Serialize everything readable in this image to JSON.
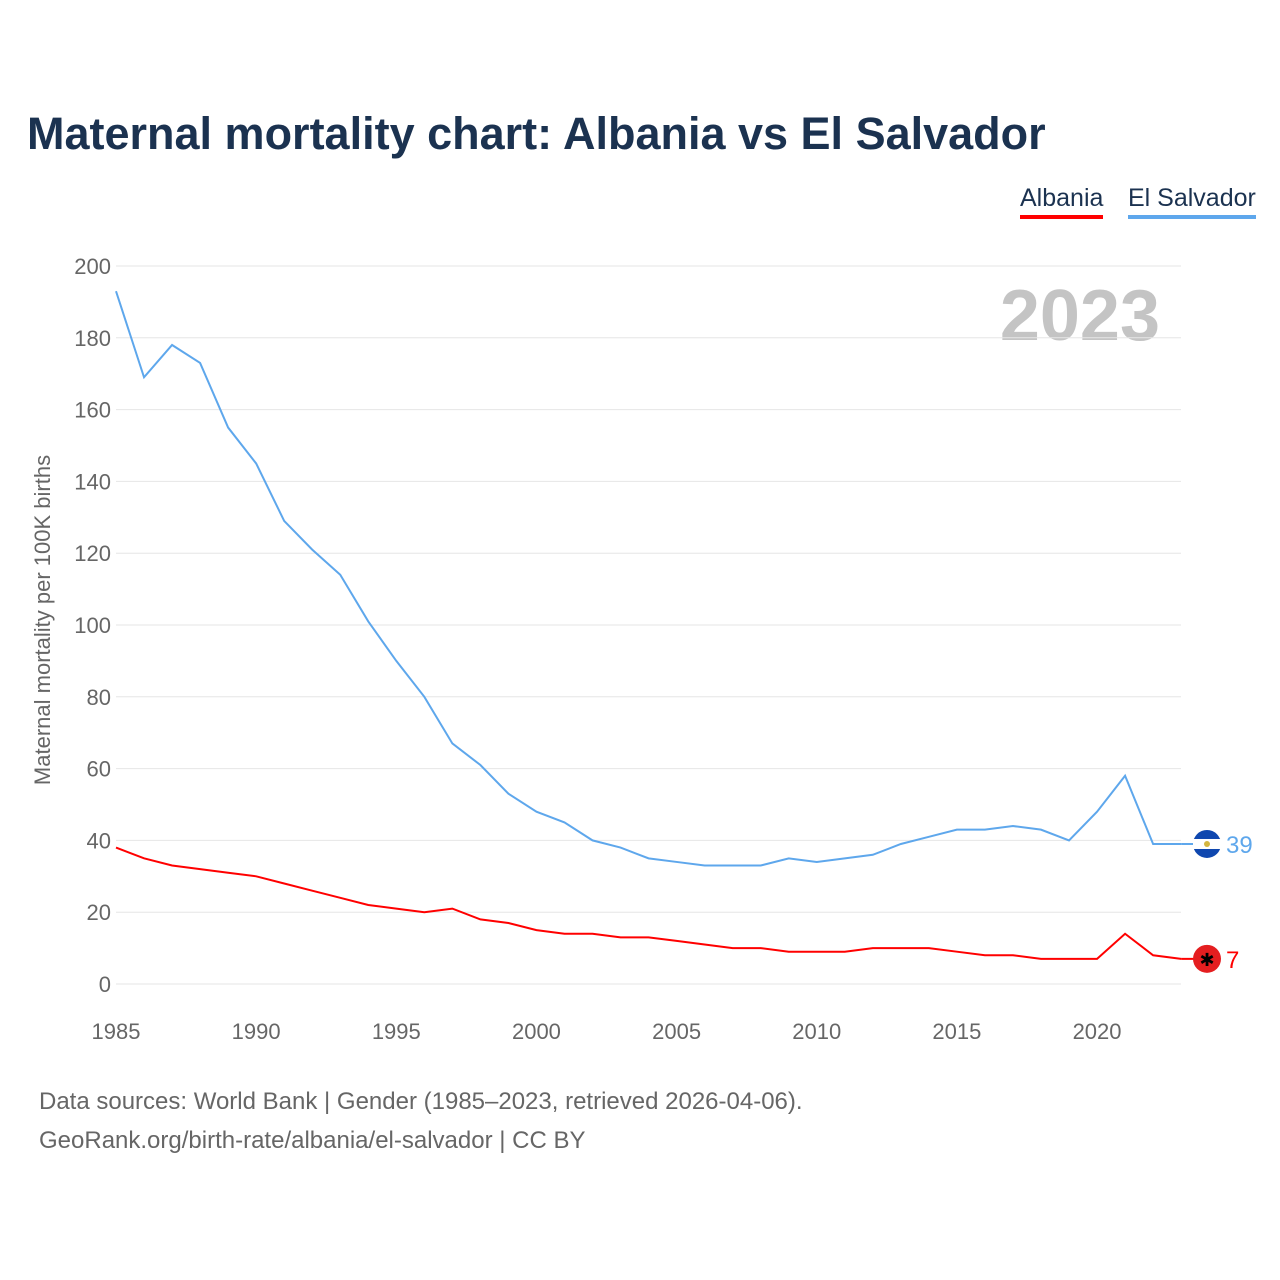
{
  "title": "Maternal mortality chart: Albania vs El Salvador",
  "footer": {
    "line1": "Data sources: World Bank | Gender (1985–2023, retrieved 2026-04-06).",
    "line2": "GeoRank.org/birth-rate/albania/el-salvador | CC BY"
  },
  "chart_data": {
    "type": "line",
    "title": "Maternal mortality chart: Albania vs El Salvador",
    "ylabel": "Maternal mortality per 100K births",
    "xlabel": "",
    "year_label": "2023",
    "ylim": [
      0,
      200
    ],
    "xlim": [
      1985,
      2023
    ],
    "yticks": [
      0,
      20,
      40,
      60,
      80,
      100,
      120,
      140,
      160,
      180,
      200
    ],
    "xticks": [
      1985,
      1990,
      1995,
      2000,
      2005,
      2010,
      2015,
      2020
    ],
    "grid": true,
    "legend_placement": "top-right",
    "x": [
      1985,
      1986,
      1987,
      1988,
      1989,
      1990,
      1991,
      1992,
      1993,
      1994,
      1995,
      1996,
      1997,
      1998,
      1999,
      2000,
      2001,
      2002,
      2003,
      2004,
      2005,
      2006,
      2007,
      2008,
      2009,
      2010,
      2011,
      2012,
      2013,
      2014,
      2015,
      2016,
      2017,
      2018,
      2019,
      2020,
      2021,
      2022,
      2023
    ],
    "series": [
      {
        "name": "Albania",
        "color": "#ff0000",
        "end_label": "7",
        "values": [
          38,
          35,
          33,
          32,
          31,
          30,
          28,
          26,
          24,
          22,
          21,
          20,
          21,
          18,
          17,
          15,
          14,
          14,
          13,
          13,
          12,
          11,
          10,
          10,
          9,
          9,
          9,
          10,
          10,
          10,
          9,
          8,
          8,
          7,
          7,
          7,
          14,
          8,
          7
        ]
      },
      {
        "name": "El Salvador",
        "color": "#5ea7ec",
        "end_label": "39",
        "values": [
          193,
          169,
          178,
          173,
          155,
          145,
          129,
          121,
          114,
          101,
          90,
          80,
          67,
          61,
          53,
          48,
          45,
          40,
          38,
          35,
          34,
          33,
          33,
          33,
          35,
          34,
          35,
          36,
          39,
          41,
          43,
          43,
          44,
          43,
          40,
          48,
          58,
          39,
          39
        ]
      }
    ]
  }
}
